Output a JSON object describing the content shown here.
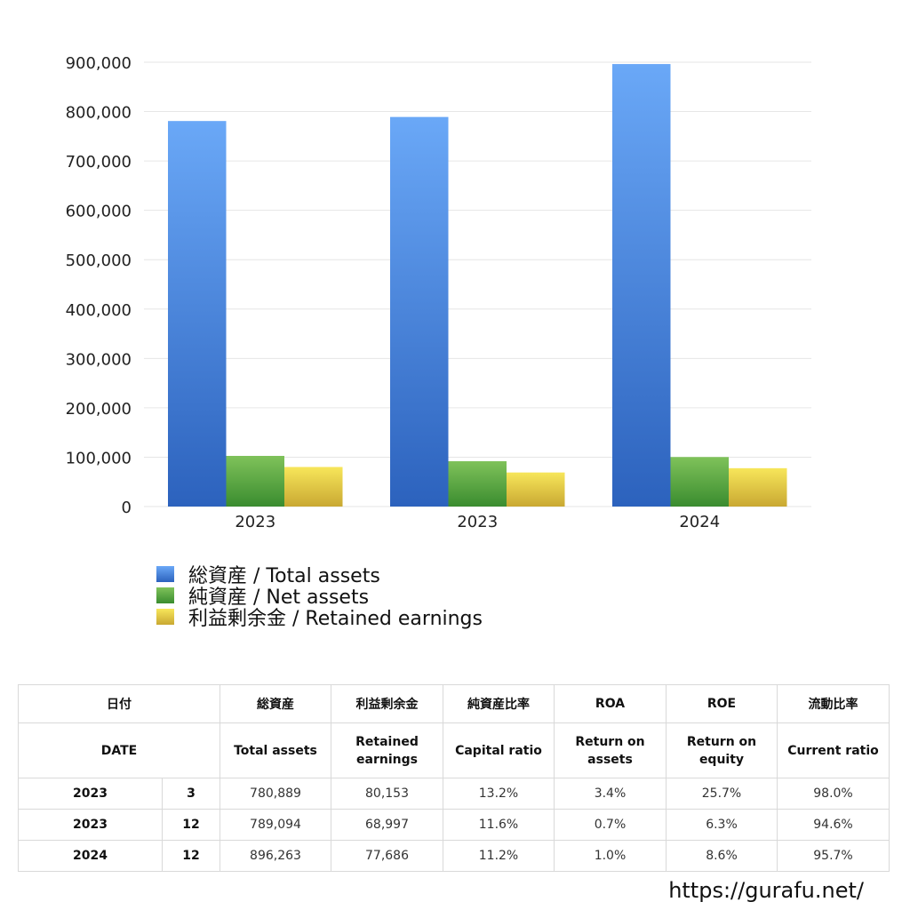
{
  "chart_data": {
    "type": "bar",
    "categories": [
      "2023",
      "2023",
      "2024"
    ],
    "series": [
      {
        "name": "総資産 / Total assets",
        "values": [
          780889,
          789094,
          896263
        ],
        "color_top": "#6aa8f7",
        "color_bottom": "#2c62bd"
      },
      {
        "name": "純資産 / Net assets",
        "values": [
          102600,
          91800,
          100300
        ],
        "color_top": "#7fc25a",
        "color_bottom": "#3a8c2f"
      },
      {
        "name": "利益剰余金 / Retained earnings",
        "values": [
          80153,
          68997,
          77686
        ],
        "color_top": "#f7e65a",
        "color_bottom": "#c9a832"
      }
    ],
    "ylim": [
      0,
      900000
    ],
    "yticks": [
      0,
      100000,
      200000,
      300000,
      400000,
      500000,
      600000,
      700000,
      800000,
      900000
    ],
    "ytick_labels": [
      "0",
      "100,000",
      "200,000",
      "300,000",
      "400,000",
      "500,000",
      "600,000",
      "700,000",
      "800,000",
      "900,000"
    ],
    "grid": true,
    "legend_position": "bottom-left"
  },
  "table": {
    "headers_ja": [
      "日付",
      "総資産",
      "利益剰余金",
      "純資産比率",
      "ROA",
      "ROE",
      "流動比率"
    ],
    "headers_en": [
      "DATE",
      "Total assets",
      "Retained earnings",
      "Capital ratio",
      "Return on assets",
      "Return on equity",
      "Current ratio"
    ],
    "rows": [
      {
        "year": "2023",
        "month": "3",
        "total_assets": "780,889",
        "retained": "80,153",
        "capital_ratio": "13.2%",
        "roa": "3.4%",
        "roe": "25.7%",
        "current_ratio": "98.0%"
      },
      {
        "year": "2023",
        "month": "12",
        "total_assets": "789,094",
        "retained": "68,997",
        "capital_ratio": "11.6%",
        "roa": "0.7%",
        "roe": "6.3%",
        "current_ratio": "94.6%"
      },
      {
        "year": "2024",
        "month": "12",
        "total_assets": "896,263",
        "retained": "77,686",
        "capital_ratio": "11.2%",
        "roa": "1.0%",
        "roe": "8.6%",
        "current_ratio": "95.7%"
      }
    ]
  },
  "footer": {
    "url": "https://gurafu.net/"
  }
}
